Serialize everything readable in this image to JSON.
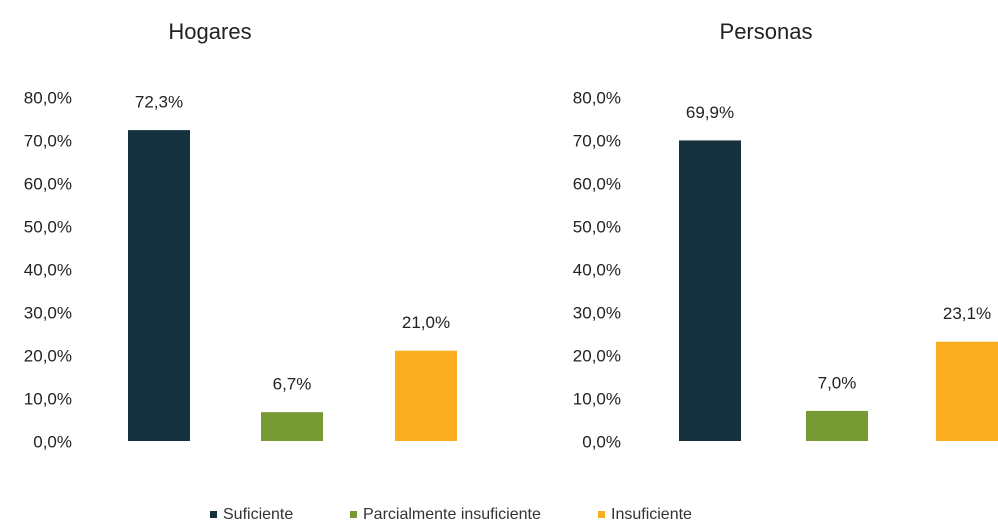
{
  "chart_data": [
    {
      "type": "bar",
      "title": "Hogares",
      "values": [
        72.3,
        6.7,
        21.0
      ],
      "value_labels": [
        "72,3%",
        "6,7%",
        "21,0%"
      ],
      "ylim": [
        0,
        80
      ],
      "yticks": [
        {
          "value": 0,
          "label": "0,0%"
        },
        {
          "value": 10,
          "label": "10,0%"
        },
        {
          "value": 20,
          "label": "20,0%"
        },
        {
          "value": 30,
          "label": "30,0%"
        },
        {
          "value": 40,
          "label": "40,0%"
        },
        {
          "value": 50,
          "label": "50,0%"
        },
        {
          "value": 60,
          "label": "60,0%"
        },
        {
          "value": 70,
          "label": "70,0%"
        },
        {
          "value": 80,
          "label": "80,0%"
        }
      ]
    },
    {
      "type": "bar",
      "title": "Personas",
      "values": [
        69.9,
        7.0,
        23.1
      ],
      "value_labels": [
        "69,9%",
        "7,0%",
        "23,1%"
      ],
      "ylim": [
        0,
        80
      ],
      "yticks": [
        {
          "value": 0,
          "label": "0,0%"
        },
        {
          "value": 10,
          "label": "10,0%"
        },
        {
          "value": 20,
          "label": "20,0%"
        },
        {
          "value": 30,
          "label": "30,0%"
        },
        {
          "value": 40,
          "label": "40,0%"
        },
        {
          "value": 50,
          "label": "50,0%"
        },
        {
          "value": 60,
          "label": "60,0%"
        },
        {
          "value": 70,
          "label": "70,0%"
        },
        {
          "value": 80,
          "label": "80,0%"
        }
      ]
    }
  ],
  "legend": [
    {
      "name": "Suficiente",
      "color": "#14313d"
    },
    {
      "name": "Parcialmente insuficiente",
      "color": "#779a35"
    },
    {
      "name": "Insuficiente",
      "color": "#fbad20"
    }
  ]
}
